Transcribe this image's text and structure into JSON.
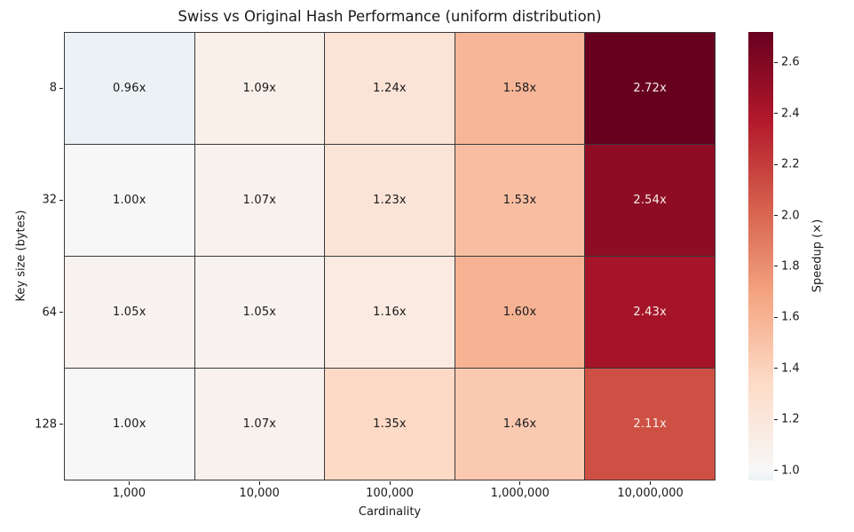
{
  "figure": {
    "background": "#ffffff",
    "grid_line_color": "#3a3a3a",
    "text_color": "#1a1a1a",
    "annotation_light_text": "#f5efe8",
    "annotation_dark_text": "#1a1a1a"
  },
  "chart_data": {
    "type": "heatmap",
    "title": "Swiss vs Original Hash Performance (uniform distribution)",
    "xlabel": "Cardinality",
    "ylabel": "Key size (bytes)",
    "x_categories": [
      "1,000",
      "10,000",
      "100,000",
      "1,000,000",
      "10,000,000"
    ],
    "y_categories": [
      "8",
      "32",
      "64",
      "128"
    ],
    "values": [
      [
        0.96,
        1.09,
        1.24,
        1.58,
        2.72
      ],
      [
        1.0,
        1.07,
        1.23,
        1.53,
        2.54
      ],
      [
        1.05,
        1.05,
        1.16,
        1.6,
        2.43
      ],
      [
        1.0,
        1.07,
        1.35,
        1.46,
        2.11
      ]
    ],
    "cell_labels": [
      [
        "0.96x",
        "1.09x",
        "1.24x",
        "1.58x",
        "2.72x"
      ],
      [
        "1.00x",
        "1.07x",
        "1.23x",
        "1.53x",
        "2.54x"
      ],
      [
        "1.05x",
        "1.05x",
        "1.16x",
        "1.60x",
        "2.43x"
      ],
      [
        "1.00x",
        "1.07x",
        "1.35x",
        "1.46x",
        "2.11x"
      ]
    ],
    "light_text_threshold": 2.0,
    "grid": true,
    "legend_position": "colorbar-right",
    "colorbar": {
      "label": "Speedup (×)",
      "vmin": 0.96,
      "vmax": 2.72,
      "tick_labels": [
        "1.0",
        "1.2",
        "1.4",
        "1.6",
        "1.8",
        "2.0",
        "2.2",
        "2.4",
        "2.6"
      ],
      "tick_values": [
        1.0,
        1.2,
        1.4,
        1.6,
        1.8,
        2.0,
        2.2,
        2.4,
        2.6
      ],
      "colormap_anchors": [
        [
          0.96,
          "#ebf1f4"
        ],
        [
          1.0,
          "#f7f7f7"
        ],
        [
          1.344,
          "#fddbc7"
        ],
        [
          1.688,
          "#f4a582"
        ],
        [
          2.032,
          "#d6604d"
        ],
        [
          2.376,
          "#b2182b"
        ],
        [
          2.72,
          "#67001f"
        ]
      ]
    }
  }
}
